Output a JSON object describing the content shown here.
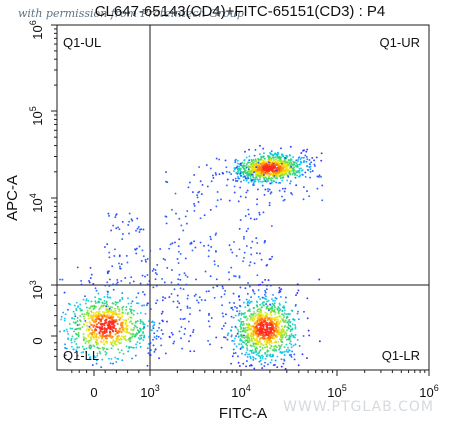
{
  "watermarks": {
    "top_left": "with permission from Proteintech Group",
    "bottom_right": "WWW.PTGLAB.COM"
  },
  "chart_data": {
    "type": "scatter",
    "title": "CL647-65143(CD4)+FITC-65151(CD3) : P4",
    "xlabel": "FITC-A",
    "ylabel": "APC-A",
    "scale": "biexponential",
    "x_ticks": [
      {
        "value": 0,
        "label": "0"
      },
      {
        "value": 1000,
        "label": "10^3"
      },
      {
        "value": 10000,
        "label": "10^4"
      },
      {
        "value": 100000,
        "label": "10^5"
      },
      {
        "value": 1000000,
        "label": "10^6"
      }
    ],
    "y_ticks": [
      {
        "value": 0,
        "label": "0"
      },
      {
        "value": 1000,
        "label": "10^3"
      },
      {
        "value": 10000,
        "label": "10^4"
      },
      {
        "value": 100000,
        "label": "10^5"
      },
      {
        "value": 1000000,
        "label": "10^6"
      }
    ],
    "xlim": [
      -500,
      1000000
    ],
    "ylim": [
      -500,
      1000000
    ],
    "gates": {
      "x": 1000,
      "y": 1000
    },
    "quadrants": [
      {
        "name": "Q1-UL",
        "position": "top-left"
      },
      {
        "name": "Q1-UR",
        "position": "top-right"
      },
      {
        "name": "Q1-LL",
        "position": "bottom-left"
      },
      {
        "name": "Q1-LR",
        "position": "bottom-right"
      }
    ],
    "populations": [
      {
        "x_center": 20000,
        "y_center": 22000,
        "spread_x": 0.19,
        "spread_y": 0.08,
        "count": 850
      },
      {
        "x_center": 18000,
        "y_center": 140,
        "spread_x": 0.17,
        "spread_y": 0.16,
        "count": 930
      },
      {
        "x_center": 220,
        "y_center": 180,
        "spread_x": 0.23,
        "spread_y": 0.17,
        "count": 760
      }
    ],
    "grid": false,
    "legend": "none",
    "colors": {
      "low": "#1f1fff",
      "mid_low": "#00c8ff",
      "mid": "#24d35d",
      "mid_high": "#fff100",
      "high": "#ff2b1f"
    }
  }
}
